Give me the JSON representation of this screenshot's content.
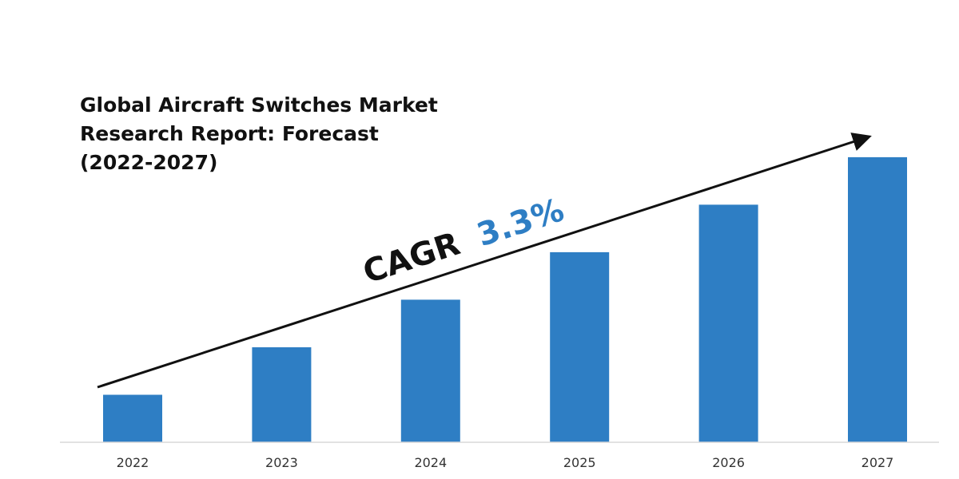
{
  "chart_data": {
    "type": "bar",
    "title_lines": [
      "Global Aircraft Switches Market",
      "Research Report: Forecast",
      "(2022-2027)"
    ],
    "categories": [
      "2022",
      "2023",
      "2024",
      "2025",
      "2026",
      "2027"
    ],
    "values": [
      1,
      2,
      3,
      4,
      5,
      6
    ],
    "ylim": [
      0,
      6.3
    ],
    "grid": false,
    "legend": "none",
    "bar_color": "#2e7ec4",
    "annotation": {
      "label": "CAGR",
      "value": "3.3%",
      "value_color": "#2e7ec4"
    }
  }
}
